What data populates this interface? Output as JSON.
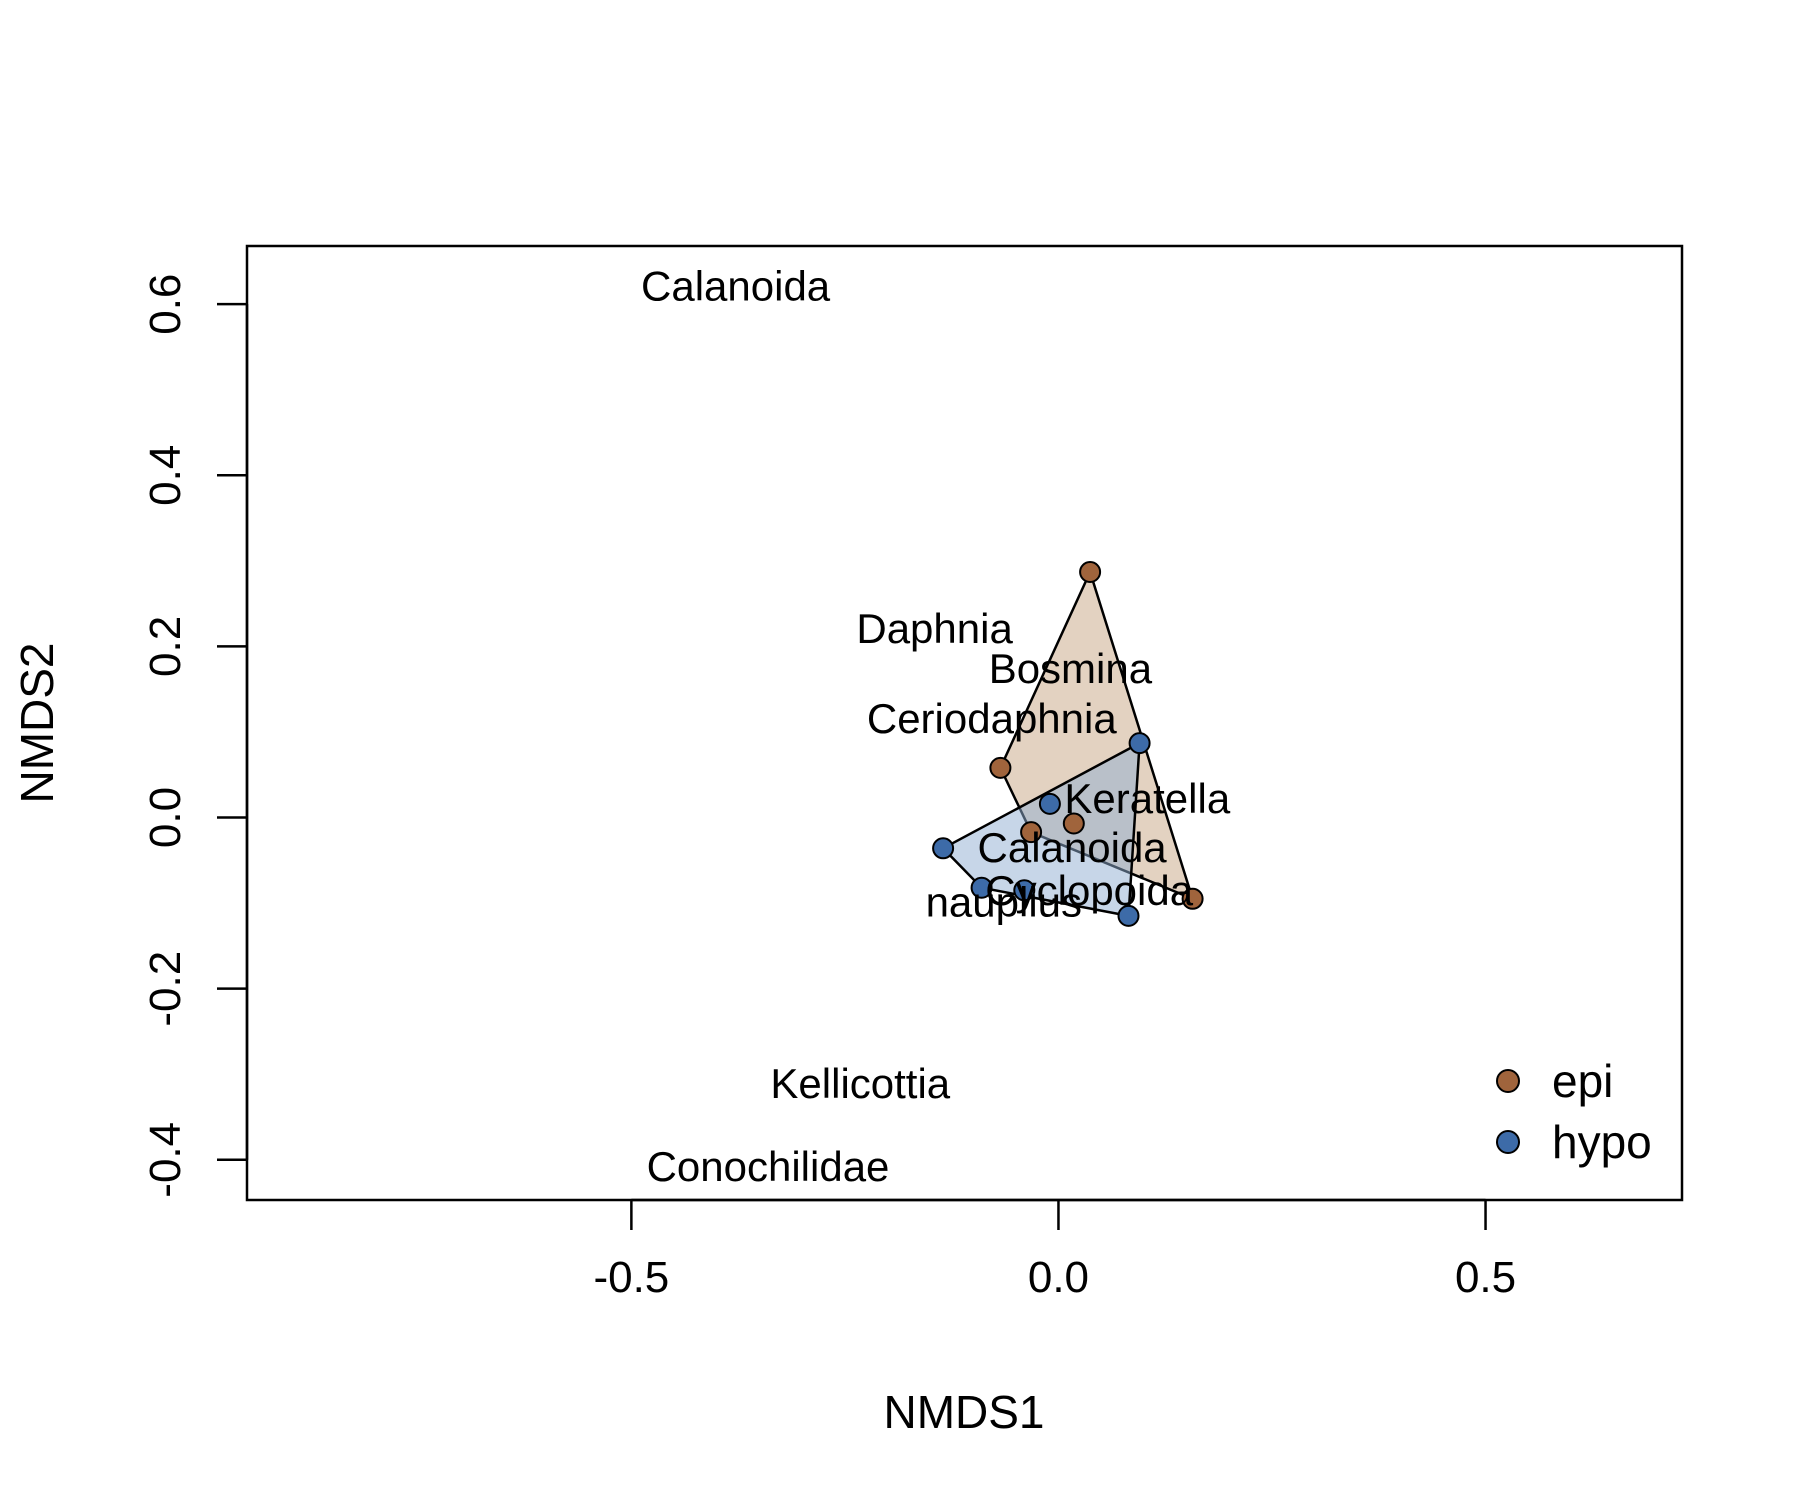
{
  "chart_data": {
    "type": "scatter",
    "title": "",
    "xlabel": "NMDS1",
    "ylabel": "NMDS2",
    "xlim": [
      -0.95,
      0.73
    ],
    "ylim": [
      -0.447,
      0.668
    ],
    "x_ticks": [
      {
        "value": -0.5,
        "label": "-0.5"
      },
      {
        "value": 0.0,
        "label": "0.0"
      },
      {
        "value": 0.5,
        "label": "0.5"
      }
    ],
    "y_ticks": [
      {
        "value": -0.4,
        "label": "-0.4"
      },
      {
        "value": -0.2,
        "label": "-0.2"
      },
      {
        "value": 0.0,
        "label": "0.0"
      },
      {
        "value": 0.2,
        "label": "0.2"
      },
      {
        "value": 0.4,
        "label": "0.4"
      },
      {
        "value": 0.6,
        "label": "0.6"
      }
    ],
    "grid": false,
    "legend_position": "bottom-right",
    "series": [
      {
        "name": "epi",
        "color": "#A0643C",
        "hull_fill": "#C8A584",
        "points": [
          {
            "x": 0.037,
            "y": 0.287
          },
          {
            "x": -0.068,
            "y": 0.058
          },
          {
            "x": -0.032,
            "y": -0.017
          },
          {
            "x": 0.018,
            "y": -0.007
          },
          {
            "x": 0.157,
            "y": -0.095
          }
        ],
        "hull": [
          {
            "x": 0.037,
            "y": 0.287
          },
          {
            "x": -0.068,
            "y": 0.058
          },
          {
            "x": -0.032,
            "y": -0.017
          },
          {
            "x": 0.157,
            "y": -0.095
          }
        ]
      },
      {
        "name": "hypo",
        "color": "#3D6BA8",
        "hull_fill": "#8FAED2",
        "points": [
          {
            "x": 0.095,
            "y": 0.087
          },
          {
            "x": -0.01,
            "y": 0.016
          },
          {
            "x": -0.135,
            "y": -0.036
          },
          {
            "x": -0.09,
            "y": -0.082
          },
          {
            "x": -0.04,
            "y": -0.085
          },
          {
            "x": 0.082,
            "y": -0.115
          }
        ],
        "hull": [
          {
            "x": 0.095,
            "y": 0.087
          },
          {
            "x": -0.135,
            "y": -0.036
          },
          {
            "x": -0.09,
            "y": -0.082
          },
          {
            "x": 0.082,
            "y": -0.115
          }
        ]
      }
    ],
    "species_labels": [
      {
        "text": "Calanoida",
        "x": -0.378,
        "y": 0.621
      },
      {
        "text": "Daphnia",
        "x": -0.145,
        "y": 0.221
      },
      {
        "text": "Bosmina",
        "x": 0.014,
        "y": 0.174
      },
      {
        "text": "Ceriodaphnia",
        "x": -0.078,
        "y": 0.116
      },
      {
        "text": "Keratella",
        "x": 0.104,
        "y": 0.022
      },
      {
        "text": "Calanoida",
        "x": 0.016,
        "y": -0.035
      },
      {
        "text": "Cyclopoida",
        "x": 0.036,
        "y": -0.085
      },
      {
        "text": "nauplius",
        "x": -0.064,
        "y": -0.099
      },
      {
        "text": "Kellicottia",
        "x": -0.232,
        "y": -0.311
      },
      {
        "text": "Conochilidae",
        "x": -0.34,
        "y": -0.408
      }
    ]
  }
}
